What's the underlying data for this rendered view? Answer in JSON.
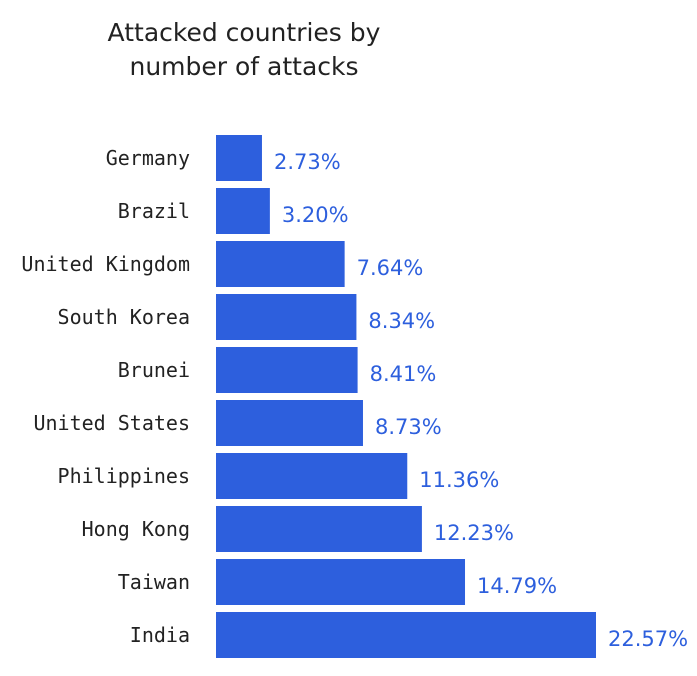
{
  "chart_data": {
    "type": "bar",
    "orientation": "horizontal",
    "title_lines": [
      "Attacked countries by",
      "number of attacks"
    ],
    "categories": [
      "Germany",
      "Brazil",
      "United Kingdom",
      "South Korea",
      "Brunei",
      "United States",
      "Philippines",
      "Hong Kong",
      "Taiwan",
      "India"
    ],
    "values": [
      2.73,
      3.2,
      7.64,
      8.34,
      8.41,
      8.73,
      11.36,
      12.23,
      14.79,
      22.57
    ],
    "value_labels": [
      "2.73%",
      "3.20%",
      "7.64%",
      "8.34%",
      "8.41%",
      "8.73%",
      "11.36%",
      "12.23%",
      "14.79%",
      "22.57%"
    ],
    "bar_color": "#2d5fdd",
    "label_color": "#2d5fdd",
    "grid": false,
    "legend": "none"
  }
}
